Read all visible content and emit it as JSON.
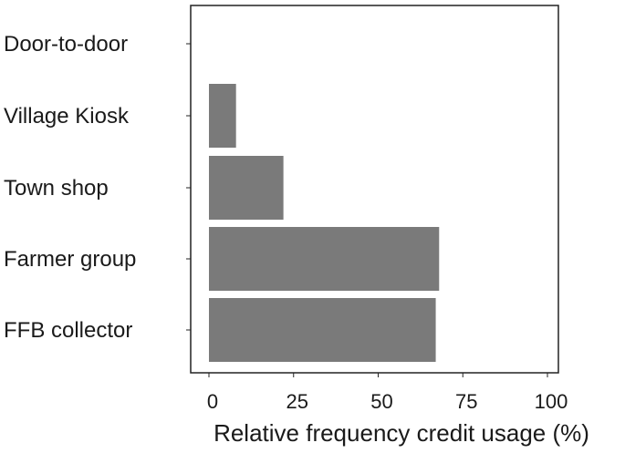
{
  "chart_data": {
    "type": "bar",
    "orientation": "horizontal",
    "categories": [
      "Door-to-door",
      "Village Kiosk",
      "Town shop",
      "Farmer group",
      "FFB collector"
    ],
    "values": [
      0,
      8,
      22,
      68,
      67
    ],
    "xlabel": "Relative frequency credit usage (%)",
    "ylabel": "",
    "title": "",
    "xlim": [
      0,
      100
    ],
    "xticks": [
      0,
      25,
      50,
      75,
      100
    ],
    "grid": false,
    "bar_color": "#7a7a7a"
  }
}
